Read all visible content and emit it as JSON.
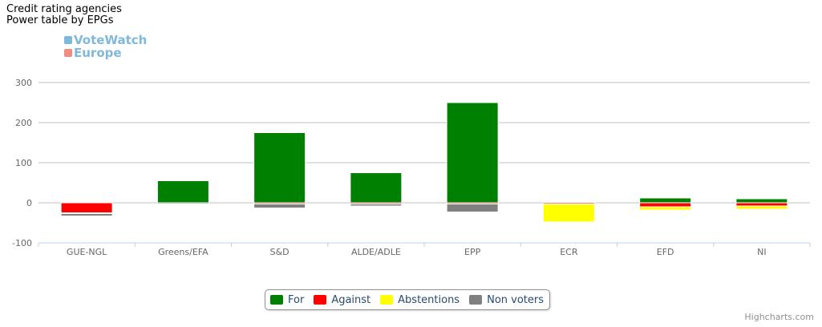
{
  "title_lines": [
    "Credit rating agencies",
    "Power table by EPGs"
  ],
  "logo": {
    "line1": "VoteWatch",
    "line2": "Europe"
  },
  "credits": "Highcharts.com",
  "colors": {
    "For": "#008000",
    "Against": "#ff0000",
    "Abstentions": "#ffff00",
    "Non voters": "#808080"
  },
  "chart_data": {
    "type": "bar",
    "stacked": true,
    "categories": [
      "GUE-NGL",
      "Greens/EFA",
      "S&D",
      "ALDE/ADLE",
      "EPP",
      "ECR",
      "EFD",
      "NI"
    ],
    "series": [
      {
        "name": "For",
        "values": [
          0,
          55,
          175,
          75,
          250,
          0,
          12,
          10
        ]
      },
      {
        "name": "Against",
        "values": [
          -25,
          0,
          -3,
          -3,
          -3,
          -3,
          -10,
          -8
        ]
      },
      {
        "name": "Abstentions",
        "values": [
          -2,
          0,
          0,
          0,
          0,
          -45,
          -8,
          -8
        ]
      },
      {
        "name": "Non voters",
        "values": [
          -6,
          -3,
          -10,
          -5,
          -20,
          -2,
          0,
          0
        ]
      }
    ],
    "ylim": [
      -100,
      300
    ],
    "yticks": [
      -100,
      0,
      100,
      200,
      300
    ],
    "grid": true,
    "legend_position": "bottom-center"
  }
}
